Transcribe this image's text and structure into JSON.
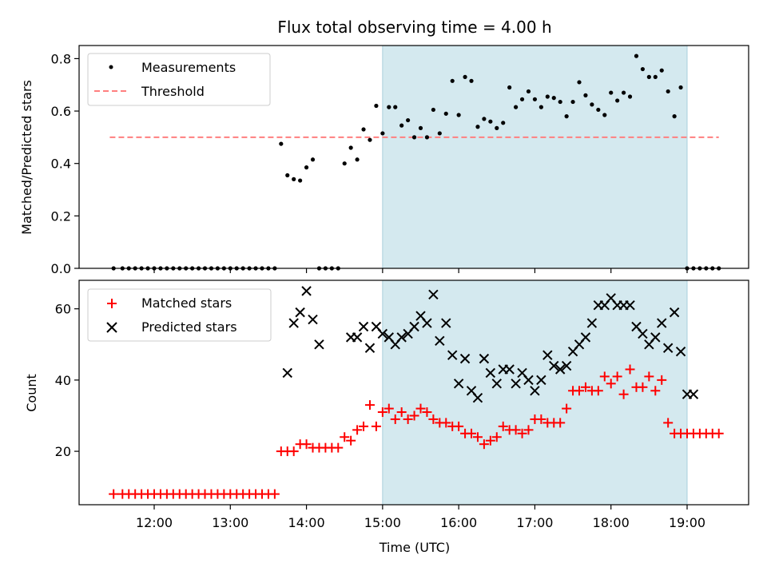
{
  "chart_data": [
    {
      "type": "scatter",
      "title": "Flux total observing time = 4.00 h",
      "xlabel": "",
      "ylabel": "Matched/Predicted stars",
      "ylim": [
        0,
        0.85
      ],
      "yticks": [
        "0.0",
        "0.2",
        "0.4",
        "0.6",
        "0.8"
      ],
      "grid": false,
      "legend_position": "top-left",
      "highlight_span": [
        "15:00",
        "19:00"
      ],
      "highlight_color": "#d4e9ef",
      "threshold": {
        "name": "Threshold",
        "value": 0.5,
        "x_range": [
          "11:25",
          "19:25"
        ],
        "color": "#ff7f7f"
      },
      "series": [
        {
          "name": "Measurements",
          "color": "#000000",
          "x": [
            "11:28",
            "11:35",
            "11:40",
            "11:45",
            "11:50",
            "11:55",
            "12:00",
            "12:05",
            "12:10",
            "12:15",
            "12:20",
            "12:25",
            "12:30",
            "12:35",
            "12:40",
            "12:45",
            "12:50",
            "12:55",
            "13:00",
            "13:05",
            "13:10",
            "13:15",
            "13:20",
            "13:25",
            "13:30",
            "13:35",
            "13:40",
            "13:45",
            "13:50",
            "13:55",
            "14:00",
            "14:05",
            "14:10",
            "14:15",
            "14:20",
            "14:25",
            "14:30",
            "14:35",
            "14:40",
            "14:45",
            "14:50",
            "14:55",
            "15:00",
            "15:05",
            "15:10",
            "15:15",
            "15:20",
            "15:25",
            "15:30",
            "15:35",
            "15:40",
            "15:45",
            "15:50",
            "15:55",
            "16:00",
            "16:05",
            "16:10",
            "16:15",
            "16:20",
            "16:25",
            "16:30",
            "16:35",
            "16:40",
            "16:45",
            "16:50",
            "16:55",
            "17:00",
            "17:05",
            "17:10",
            "17:15",
            "17:20",
            "17:25",
            "17:30",
            "17:35",
            "17:40",
            "17:45",
            "17:50",
            "17:55",
            "18:00",
            "18:05",
            "18:10",
            "18:15",
            "18:20",
            "18:25",
            "18:30",
            "18:35",
            "18:40",
            "18:45",
            "18:50",
            "18:55",
            "19:00",
            "19:05",
            "19:10",
            "19:15",
            "19:20",
            "19:25"
          ],
          "y": [
            0,
            0,
            0,
            0,
            0,
            0,
            0,
            0,
            0,
            0,
            0,
            0,
            0,
            0,
            0,
            0,
            0,
            0,
            0,
            0,
            0,
            0,
            0,
            0,
            0,
            0,
            0.475,
            0.355,
            0.34,
            0.335,
            0.385,
            0.415,
            0,
            0,
            0,
            0,
            0.4,
            0.46,
            0.415,
            0.53,
            0.49,
            0.62,
            0.515,
            0.615,
            0.615,
            0.545,
            0.565,
            0.5,
            0.535,
            0.5,
            0.605,
            0.515,
            0.59,
            0.715,
            0.585,
            0.73,
            0.715,
            0.54,
            0.57,
            0.56,
            0.535,
            0.555,
            0.69,
            0.615,
            0.645,
            0.675,
            0.645,
            0.615,
            0.655,
            0.65,
            0.635,
            0.58,
            0.635,
            0.71,
            0.66,
            0.625,
            0.605,
            0.585,
            0.67,
            0.64,
            0.67,
            0.655,
            0.81,
            0.76,
            0.73,
            0.73,
            0.755,
            0.675,
            0.58,
            0.69,
            0,
            0,
            0,
            0,
            0,
            0
          ]
        }
      ]
    },
    {
      "type": "scatter",
      "title": "",
      "xlabel": "Time (UTC)",
      "ylabel": "Count",
      "ylim": [
        5,
        68
      ],
      "yticks": [
        "20",
        "40",
        "60"
      ],
      "xticks": [
        "12:00",
        "13:00",
        "14:00",
        "15:00",
        "16:00",
        "17:00",
        "18:00",
        "19:00"
      ],
      "grid": false,
      "legend_position": "top-left",
      "highlight_span": [
        "15:00",
        "19:00"
      ],
      "highlight_color": "#d4e9ef",
      "series": [
        {
          "name": "Matched stars",
          "color": "#ff0000",
          "marker": "+",
          "x": [
            "11:28",
            "11:35",
            "11:40",
            "11:45",
            "11:50",
            "11:55",
            "12:00",
            "12:05",
            "12:10",
            "12:15",
            "12:20",
            "12:25",
            "12:30",
            "12:35",
            "12:40",
            "12:45",
            "12:50",
            "12:55",
            "13:00",
            "13:05",
            "13:10",
            "13:15",
            "13:20",
            "13:25",
            "13:30",
            "13:35",
            "13:40",
            "13:45",
            "13:50",
            "13:55",
            "14:00",
            "14:05",
            "14:10",
            "14:15",
            "14:20",
            "14:25",
            "14:30",
            "14:35",
            "14:40",
            "14:45",
            "14:50",
            "14:55",
            "15:00",
            "15:05",
            "15:10",
            "15:15",
            "15:20",
            "15:25",
            "15:30",
            "15:35",
            "15:40",
            "15:45",
            "15:50",
            "15:55",
            "16:00",
            "16:05",
            "16:10",
            "16:15",
            "16:20",
            "16:25",
            "16:30",
            "16:35",
            "16:40",
            "16:45",
            "16:50",
            "16:55",
            "17:00",
            "17:05",
            "17:10",
            "17:15",
            "17:20",
            "17:25",
            "17:30",
            "17:35",
            "17:40",
            "17:45",
            "17:50",
            "17:55",
            "18:00",
            "18:05",
            "18:10",
            "18:15",
            "18:20",
            "18:25",
            "18:30",
            "18:35",
            "18:40",
            "18:45",
            "18:50",
            "18:55",
            "19:00",
            "19:05",
            "19:10",
            "19:15",
            "19:20",
            "19:25"
          ],
          "y": [
            8,
            8,
            8,
            8,
            8,
            8,
            8,
            8,
            8,
            8,
            8,
            8,
            8,
            8,
            8,
            8,
            8,
            8,
            8,
            8,
            8,
            8,
            8,
            8,
            8,
            8,
            20,
            20,
            20,
            22,
            22,
            21,
            21,
            21,
            21,
            21,
            24,
            23,
            26,
            27,
            33,
            27,
            31,
            32,
            29,
            31,
            29,
            30,
            32,
            31,
            29,
            28,
            28,
            27,
            27,
            25,
            25,
            24,
            22,
            23,
            24,
            27,
            26,
            26,
            25,
            26,
            29,
            29,
            28,
            28,
            28,
            32,
            37,
            37,
            38,
            37,
            37,
            41,
            39,
            41,
            36,
            43,
            38,
            38,
            41,
            37,
            40,
            28,
            25,
            25,
            25,
            25,
            25,
            25,
            25,
            25
          ]
        },
        {
          "name": "Predicted stars",
          "color": "#000000",
          "marker": "x",
          "x": [
            "13:45",
            "13:50",
            "13:55",
            "14:00",
            "14:05",
            "14:10",
            "14:35",
            "14:40",
            "14:45",
            "14:50",
            "14:55",
            "15:00",
            "15:05",
            "15:10",
            "15:15",
            "15:20",
            "15:25",
            "15:30",
            "15:35",
            "15:40",
            "15:45",
            "15:50",
            "15:55",
            "16:00",
            "16:05",
            "16:10",
            "16:15",
            "16:20",
            "16:25",
            "16:30",
            "16:35",
            "16:40",
            "16:45",
            "16:50",
            "16:55",
            "17:00",
            "17:05",
            "17:10",
            "17:15",
            "17:20",
            "17:25",
            "17:30",
            "17:35",
            "17:40",
            "17:45",
            "17:50",
            "17:55",
            "18:00",
            "18:05",
            "18:10",
            "18:15",
            "18:20",
            "18:25",
            "18:30",
            "18:35",
            "18:40",
            "18:45",
            "18:50",
            "18:55",
            "19:00",
            "19:05"
          ],
          "y": [
            42,
            56,
            59,
            65,
            57,
            50,
            52,
            52,
            55,
            49,
            55,
            53,
            52,
            50,
            52,
            53,
            55,
            58,
            56,
            64,
            51,
            56,
            47,
            39,
            46,
            37,
            35,
            46,
            42,
            39,
            43,
            43,
            39,
            42,
            40,
            37,
            40,
            47,
            44,
            43,
            44,
            48,
            50,
            52,
            56,
            61,
            61,
            63,
            61,
            61,
            61,
            55,
            53,
            50,
            52,
            56,
            49,
            59,
            48,
            36,
            36
          ]
        }
      ]
    }
  ]
}
